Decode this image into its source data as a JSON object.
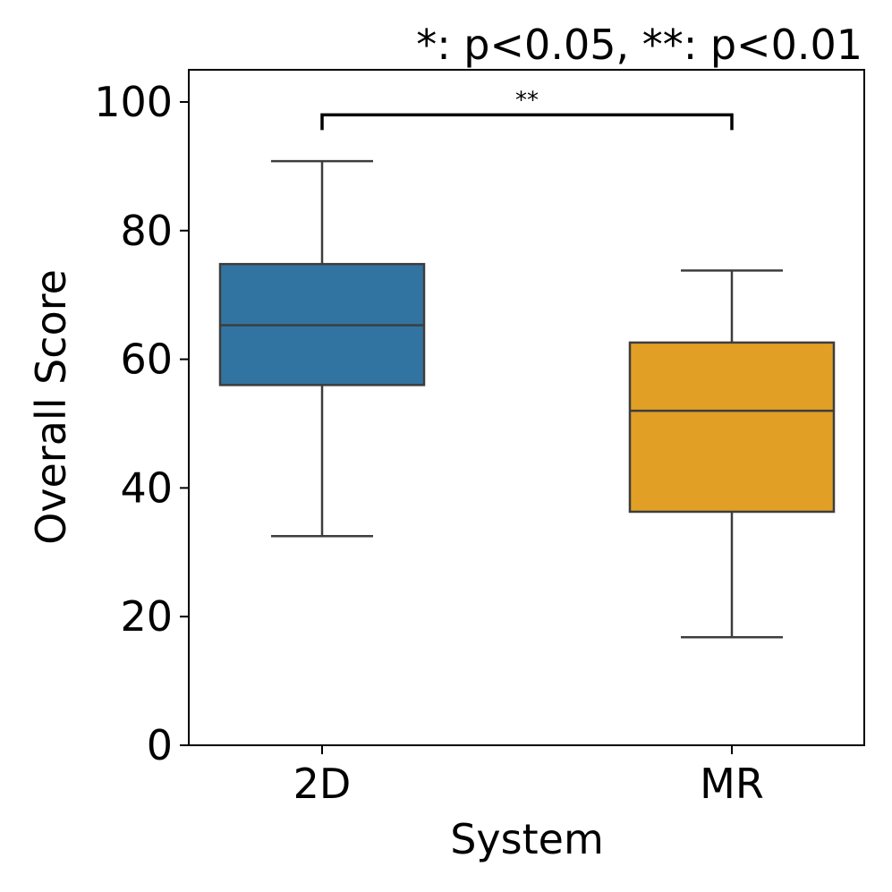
{
  "chart_data": {
    "type": "box",
    "title": "",
    "annotation_legend": "*: p<0.05, **: p<0.01",
    "xlabel": "System",
    "ylabel": "Overall Score",
    "ylim": [
      0,
      105
    ],
    "yticks": [
      0,
      20,
      40,
      60,
      80,
      100
    ],
    "grid": false,
    "categories": [
      "2D",
      "MR"
    ],
    "boxes": [
      {
        "name": "2D",
        "whisker_low": 32.5,
        "q1": 56,
        "median": 65.3,
        "q3": 74.8,
        "whisker_high": 90.8,
        "color": "#3274a1"
      },
      {
        "name": "MR",
        "whisker_low": 16.8,
        "q1": 36.3,
        "median": 52,
        "q3": 62.6,
        "whisker_high": 73.8,
        "color": "#e1a025"
      }
    ],
    "significance": [
      {
        "from": "2D",
        "to": "MR",
        "label": "**",
        "y": 98
      }
    ]
  }
}
